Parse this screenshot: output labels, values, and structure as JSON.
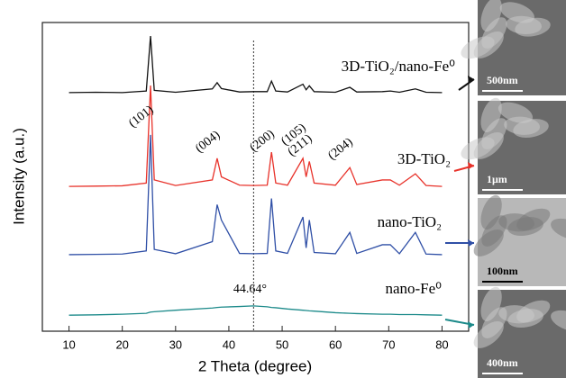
{
  "chart_data": {
    "type": "line",
    "xlabel": "2 Theta (degree)",
    "ylabel": "Intensity (a.u.)",
    "xlim": [
      5,
      85
    ],
    "xticks": [
      10,
      20,
      30,
      40,
      50,
      60,
      70,
      80
    ],
    "ylim": [
      0,
      100
    ],
    "x": [
      10,
      15,
      20,
      24.5,
      25.3,
      26,
      30,
      36.9,
      37.8,
      38.6,
      42,
      44.6,
      47.2,
      48.0,
      48.8,
      51,
      53.9,
      54.5,
      55.1,
      56,
      60,
      62.7,
      64,
      68.8,
      70.3,
      72,
      75.0,
      77,
      80
    ],
    "series": [
      {
        "name": "3D-TiO₂/nano-Fe⁰",
        "color": "#111111",
        "values": [
          77.3,
          77.4,
          77.3,
          77.8,
          95.6,
          78,
          77.4,
          78.5,
          80.5,
          78.6,
          77.5,
          77.6,
          77.6,
          81,
          77.8,
          77.5,
          80,
          78.2,
          79.5,
          77.6,
          77.4,
          79,
          77.5,
          77.6,
          77.8,
          77.4,
          78.5,
          77.4,
          77.3
        ]
      },
      {
        "name": "3D-TiO₂",
        "color": "#e8322a",
        "values": [
          46.9,
          47,
          47.1,
          48,
          79.6,
          49,
          47.2,
          49,
          56,
          50,
          47.3,
          47.2,
          47.3,
          58,
          48,
          47.3,
          56,
          50,
          55,
          48,
          47.3,
          53,
          47.5,
          49,
          49,
          47.3,
          51,
          47.2,
          46.9
        ]
      },
      {
        "name": "nano-TiO₂",
        "color": "#2f4fa6",
        "values": [
          24.8,
          24.9,
          25,
          26,
          63.6,
          26.5,
          25.1,
          29,
          41,
          36,
          25.2,
          25.1,
          25.2,
          43,
          26,
          25.2,
          37,
          27,
          36,
          25.5,
          25.1,
          32,
          25.2,
          28,
          28,
          25.1,
          32,
          25,
          24.8
        ]
      },
      {
        "name": "nano-Fe⁰",
        "color": "#1c8a8a",
        "values": [
          5.2,
          5.3,
          5.5,
          5.8,
          6.2,
          6.3,
          6.8,
          7.5,
          7.7,
          7.8,
          8,
          8.2,
          7.9,
          7.7,
          7.6,
          7.2,
          6.8,
          6.7,
          6.6,
          6.5,
          6,
          5.8,
          5.7,
          5.5,
          5.5,
          5.4,
          5.4,
          5.3,
          5.2
        ]
      }
    ],
    "reference_line": {
      "value": 44.64,
      "label": "44.64°"
    },
    "peak_labels": [
      {
        "text": "(101)",
        "x": 25.3
      },
      {
        "text": "(004)",
        "x": 37.8
      },
      {
        "text": "(200)",
        "x": 48.0
      },
      {
        "text": "(105)",
        "x": 53.9
      },
      {
        "text": "(211)",
        "x": 55.1
      },
      {
        "text": "(204)",
        "x": 62.7
      }
    ]
  },
  "images": [
    {
      "scale": "500nm"
    },
    {
      "scale": "1μm"
    },
    {
      "scale": "100nm"
    },
    {
      "scale": "400nm"
    }
  ]
}
